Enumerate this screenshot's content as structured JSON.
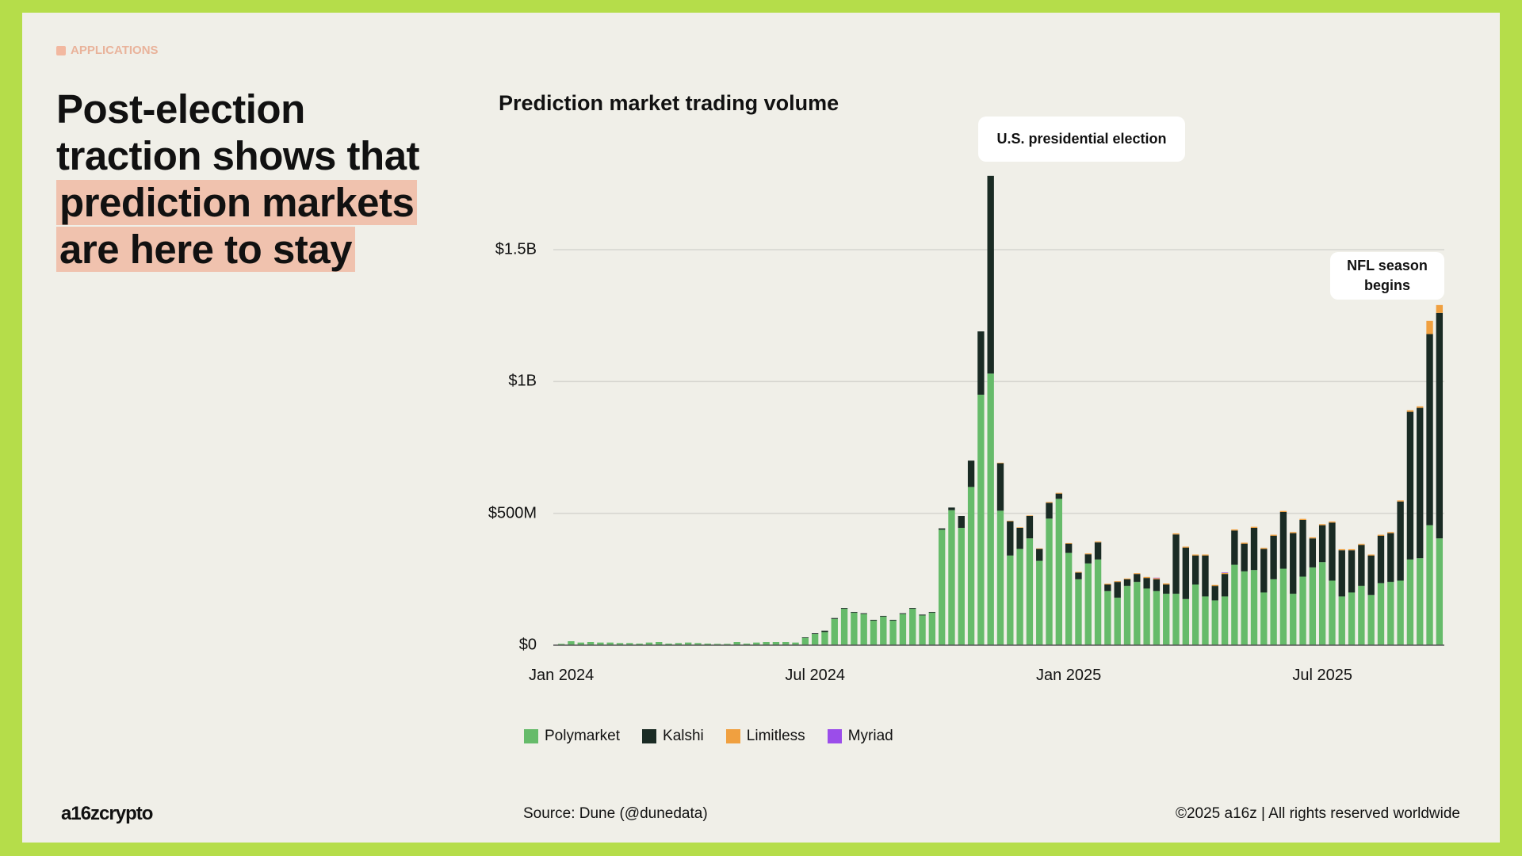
{
  "section_label": "APPLICATIONS",
  "headline": {
    "plain": "Post-election traction shows that ",
    "highlight": "prediction markets are here to stay"
  },
  "colors": {
    "polymarket": "#66bb6a",
    "kalshi": "#1a2b24",
    "limitless": "#f0a040",
    "myriad": "#9b4dea",
    "highlight": "#f0c2ae",
    "border": "#b5dd4a"
  },
  "chart_data": {
    "type": "bar",
    "stacked": true,
    "title": "Prediction market trading volume",
    "xlabel": "",
    "ylabel": "",
    "ylim": [
      0,
      1800000000
    ],
    "y_ticks": [
      {
        "value": 0,
        "label": "$0"
      },
      {
        "value": 500000000,
        "label": "$500M"
      },
      {
        "value": 1000000000,
        "label": "$1B"
      },
      {
        "value": 1500000000,
        "label": "$1.5B"
      }
    ],
    "x_ticks": [
      {
        "week": 0,
        "label": "Jan 2024"
      },
      {
        "week": 26,
        "label": "Jul 2024"
      },
      {
        "week": 52,
        "label": "Jan 2025"
      },
      {
        "week": 78,
        "label": "Jul 2025"
      }
    ],
    "x_unit": "weekly, starting Jan 2024",
    "unit": "millions USD",
    "legend_position": "bottom-left",
    "grid": true,
    "series": [
      {
        "name": "Polymarket",
        "values": [
          5,
          15,
          10,
          12,
          10,
          10,
          8,
          8,
          6,
          10,
          12,
          6,
          8,
          10,
          8,
          6,
          5,
          5,
          12,
          6,
          10,
          12,
          12,
          12,
          10,
          28,
          42,
          50,
          100,
          138,
          123,
          118,
          93,
          108,
          93,
          118,
          138,
          113,
          123,
          438,
          512,
          445,
          600,
          950,
          1030,
          510,
          340,
          365,
          405,
          320,
          480,
          555,
          350,
          250,
          310,
          325,
          205,
          180,
          225,
          240,
          215,
          205,
          195,
          195,
          175,
          230,
          185,
          170,
          185,
          305,
          280,
          285,
          200,
          250,
          290,
          195,
          260,
          295,
          315,
          245,
          185,
          200,
          225,
          190,
          235,
          240,
          245,
          325,
          330,
          455,
          405
        ]
      },
      {
        "name": "Kalshi",
        "values": [
          0,
          0,
          0,
          0,
          0,
          0,
          0,
          0,
          0,
          0,
          0,
          0,
          0,
          0,
          0,
          0,
          0,
          0,
          0,
          0,
          0,
          0,
          0,
          0,
          0,
          2,
          3,
          5,
          3,
          3,
          3,
          3,
          3,
          3,
          3,
          3,
          3,
          3,
          3,
          5,
          10,
          45,
          100,
          240,
          750,
          180,
          130,
          80,
          85,
          45,
          60,
          20,
          35,
          25,
          35,
          65,
          25,
          60,
          25,
          30,
          40,
          45,
          35,
          225,
          195,
          110,
          155,
          55,
          85,
          130,
          105,
          160,
          165,
          165,
          215,
          230,
          215,
          110,
          140,
          220,
          175,
          160,
          155,
          150,
          180,
          185,
          300,
          560,
          570,
          725,
          855
        ]
      },
      {
        "name": "Limitless",
        "values": [
          0,
          0,
          0,
          0,
          0,
          0,
          0,
          0,
          0,
          0,
          0,
          0,
          0,
          0,
          0,
          0,
          0,
          0,
          0,
          0,
          0,
          0,
          0,
          0,
          0,
          0,
          0,
          0,
          0,
          0,
          0,
          0,
          0,
          0,
          0,
          0,
          0,
          0,
          0,
          0,
          0,
          0,
          0,
          0,
          0,
          2,
          2,
          2,
          2,
          2,
          3,
          3,
          3,
          3,
          3,
          3,
          3,
          3,
          3,
          3,
          4,
          4,
          4,
          4,
          4,
          4,
          4,
          4,
          4,
          4,
          4,
          4,
          4,
          4,
          4,
          4,
          4,
          4,
          4,
          4,
          4,
          4,
          4,
          4,
          4,
          4,
          4,
          6,
          6,
          50,
          30
        ]
      },
      {
        "name": "Myriad",
        "values": [
          0,
          0,
          0,
          0,
          0,
          0,
          0,
          0,
          0,
          0,
          0,
          0,
          0,
          0,
          0,
          0,
          0,
          0,
          0,
          0,
          0,
          0,
          0,
          0,
          0,
          0,
          0,
          0,
          0,
          0,
          0,
          0,
          0,
          0,
          0,
          0,
          0,
          0,
          0,
          0,
          0,
          0,
          0,
          0,
          0,
          0,
          0,
          0,
          0,
          0,
          0,
          0,
          0,
          0,
          0,
          0,
          0,
          0,
          0,
          0,
          0,
          2,
          0,
          0,
          0,
          0,
          0,
          0,
          2,
          0,
          0,
          0,
          0,
          0,
          0,
          0,
          0,
          0,
          0,
          0,
          0,
          0,
          0,
          0,
          0,
          0,
          0,
          0,
          0,
          0,
          0
        ]
      }
    ],
    "annotations": [
      {
        "text": "U.S. presidential election",
        "week": 44
      },
      {
        "text": "NFL season begins",
        "week": 89
      }
    ]
  },
  "footer": {
    "logo": "a16zcrypto",
    "source": "Source: Dune (@dunedata)",
    "copyright": "©2025 a16z | All rights reserved worldwide"
  }
}
